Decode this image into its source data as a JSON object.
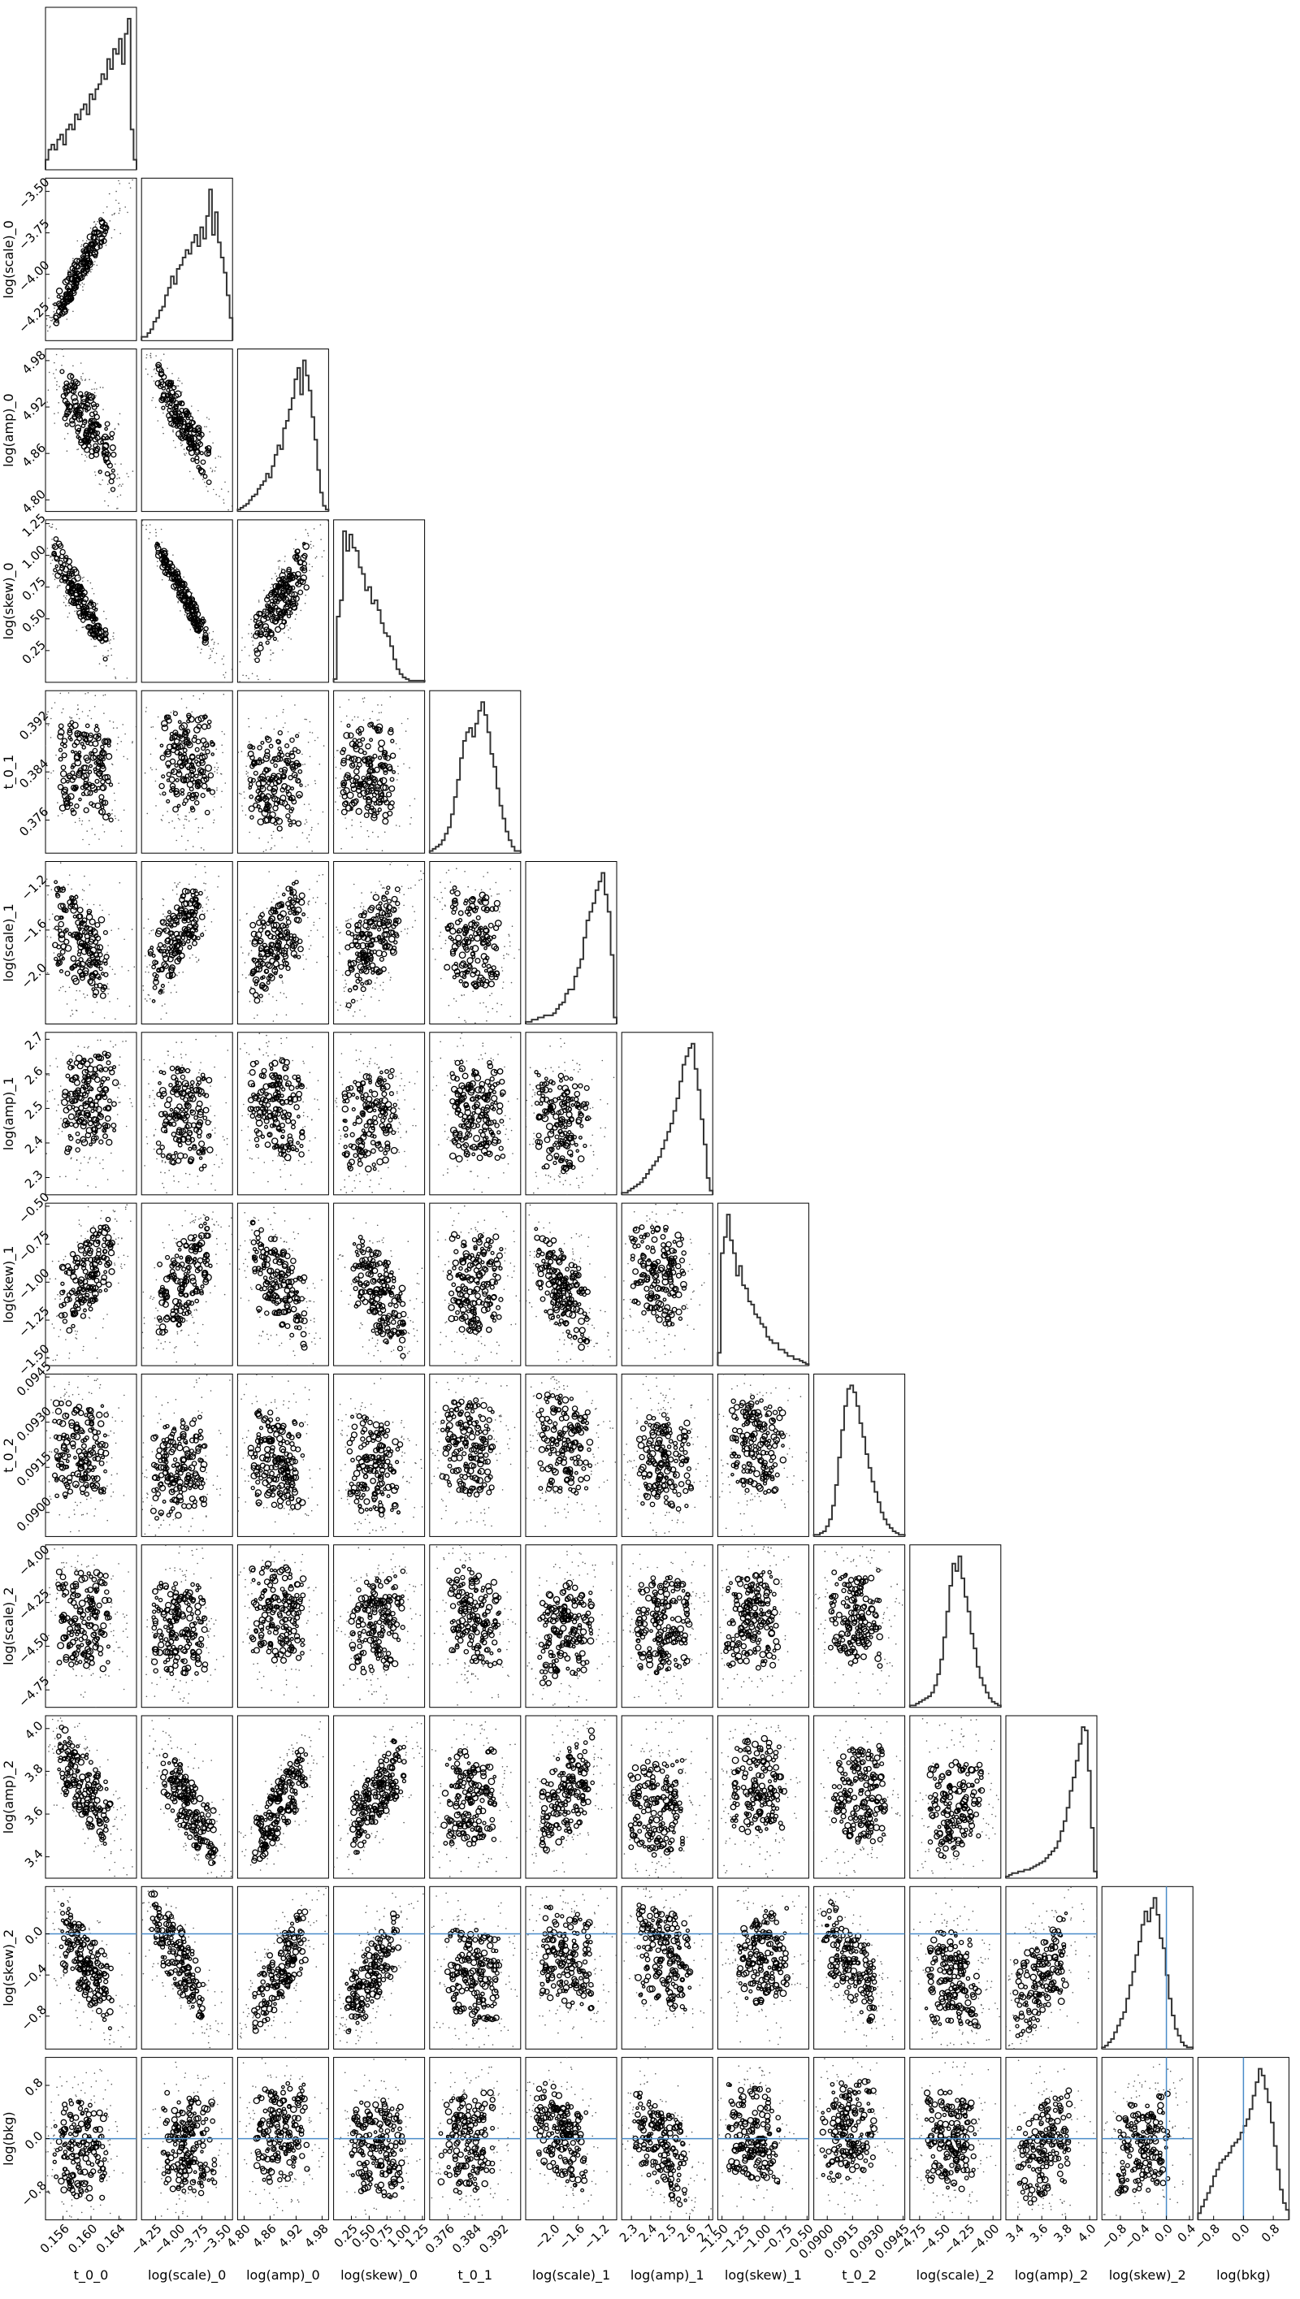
{
  "figure": {
    "type": "corner-plot"
  },
  "colors": {
    "frame": "#000000",
    "contour": "#000000",
    "points": "#555555",
    "truth": "#4a8cc9",
    "histogram": "#333333"
  },
  "chart_data": {
    "type": "corner",
    "parameters": [
      {
        "name": "t_0_0",
        "ylabel": "",
        "xticks": [
          "0.156",
          "0.160",
          "0.164"
        ],
        "yticks": [],
        "range": [
          0.1535,
          0.1665
        ]
      },
      {
        "name": "log(scale)_0",
        "ylabel": "log(scale)_0",
        "xticks": [
          "−4.25",
          "−4.00",
          "−3.75",
          "−3.50"
        ],
        "yticks": [
          "−3.50",
          "−3.75",
          "−4.00",
          "−4.25"
        ],
        "range": [
          -4.4,
          -3.42
        ]
      },
      {
        "name": "log(amp)_0",
        "ylabel": "log(amp)_0",
        "xticks": [
          "4.80",
          "4.86",
          "4.92",
          "4.98"
        ],
        "yticks": [
          "4.98",
          "4.92",
          "4.86",
          "4.80"
        ],
        "range": [
          4.785,
          4.995
        ]
      },
      {
        "name": "log(skew)_0",
        "ylabel": "log(skew)_0",
        "xticks": [
          "0.25",
          "0.50",
          "0.75",
          "1.00",
          "1.25"
        ],
        "yticks": [
          "1.25",
          "1.00",
          "0.75",
          "0.50",
          "0.25"
        ],
        "range": [
          0.0,
          1.28
        ]
      },
      {
        "name": "t_0_1",
        "ylabel": "t_0_1",
        "xticks": [
          "0.376",
          "0.384",
          "0.392"
        ],
        "yticks": [
          "0.392",
          "0.384",
          "0.376"
        ],
        "range": [
          0.3705,
          0.3975
        ]
      },
      {
        "name": "log(scale)_1",
        "ylabel": "log(scale)_1",
        "xticks": [
          "−2.0",
          "−1.6",
          "−1.2"
        ],
        "yticks": [
          "−1.2",
          "−1.6",
          "−2.0"
        ],
        "range": [
          -2.45,
          -0.98
        ]
      },
      {
        "name": "log(amp)_1",
        "ylabel": "log(amp)_1",
        "xticks": [
          "2.3",
          "2.4",
          "2.5",
          "2.6",
          "2.7"
        ],
        "yticks": [
          "2.7",
          "2.6",
          "2.5",
          "2.4",
          "2.3"
        ],
        "range": [
          2.25,
          2.72
        ]
      },
      {
        "name": "log(skew)_1",
        "ylabel": "log(skew)_1",
        "xticks": [
          "−1.50",
          "−1.25",
          "−1.00",
          "−0.75",
          "−0.50"
        ],
        "yticks": [
          "−0.50",
          "−0.75",
          "−1.00",
          "−1.25",
          "−1.50"
        ],
        "range": [
          -1.55,
          -0.48
        ]
      },
      {
        "name": "t_0_2",
        "ylabel": "t_0_2",
        "xticks": [
          "0.0900",
          "0.0915",
          "0.0930",
          "0.0945"
        ],
        "yticks": [
          "0.0945",
          "0.0930",
          "0.0915",
          "0.0900"
        ],
        "range": [
          0.0892,
          0.0946
        ]
      },
      {
        "name": "log(scale)_2",
        "ylabel": "log(scale)_2",
        "xticks": [
          "−4.75",
          "−4.50",
          "−4.25",
          "−4.00"
        ],
        "yticks": [
          "−4.00",
          "−4.25",
          "−4.50",
          "−4.75"
        ],
        "range": [
          -4.85,
          -3.92
        ]
      },
      {
        "name": "log(amp)_2",
        "ylabel": "log(amp)_2",
        "xticks": [
          "3.4",
          "3.6",
          "3.8",
          "4.0"
        ],
        "yticks": [
          "4.0",
          "3.8",
          "3.6",
          "3.4"
        ],
        "range": [
          3.3,
          4.06
        ]
      },
      {
        "name": "log(skew)_2",
        "ylabel": "log(skew)_2",
        "xticks": [
          "−0.8",
          "−0.4",
          "0.0",
          "0.4"
        ],
        "yticks": [
          "0.0",
          "−0.4",
          "−0.8"
        ],
        "range": [
          -1.12,
          0.46
        ]
      },
      {
        "name": "log(bkg)",
        "ylabel": "log(bkg)",
        "xticks": [
          "−0.8",
          "0.0",
          "0.8"
        ],
        "yticks": [
          "0.8",
          "0.0",
          "−0.8"
        ],
        "range": [
          -1.22,
          1.22
        ]
      }
    ],
    "truths": {
      "log(skew)_2": 0.0,
      "log(bkg)": 0.0
    },
    "histograms": [
      {
        "param": "t_0_0",
        "counts": [
          2,
          4,
          5,
          4,
          6,
          7,
          5,
          8,
          9,
          8,
          11,
          10,
          12,
          13,
          11,
          15,
          14,
          16,
          17,
          19,
          18,
          22,
          20,
          24,
          23,
          26,
          21,
          27,
          30,
          8,
          2
        ]
      },
      {
        "param": "log(scale)_0",
        "counts": [
          1,
          1,
          2,
          3,
          5,
          6,
          8,
          9,
          12,
          14,
          17,
          15,
          19,
          20,
          22,
          24,
          23,
          26,
          28,
          25,
          30,
          27,
          33,
          40,
          28,
          34,
          26,
          22,
          18,
          12,
          6
        ]
      },
      {
        "param": "log(amp)_0",
        "counts": [
          1,
          2,
          3,
          4,
          6,
          8,
          9,
          12,
          14,
          16,
          20,
          18,
          24,
          30,
          35,
          33,
          44,
          48,
          54,
          60,
          70,
          76,
          62,
          80,
          72,
          64,
          50,
          38,
          22,
          10,
          3,
          1
        ]
      },
      {
        "param": "log(skew)_0",
        "counts": [
          2,
          40,
          50,
          92,
          80,
          90,
          82,
          80,
          70,
          66,
          56,
          58,
          48,
          50,
          44,
          36,
          30,
          28,
          22,
          14,
          8,
          5,
          3,
          2,
          1,
          1,
          1,
          1,
          1
        ]
      },
      {
        "param": "t_0_1",
        "counts": [
          1,
          2,
          3,
          4,
          6,
          9,
          12,
          18,
          26,
          34,
          44,
          52,
          56,
          58,
          54,
          60,
          66,
          70,
          64,
          56,
          46,
          40,
          30,
          22,
          16,
          10,
          6,
          3,
          1,
          1
        ]
      },
      {
        "param": "log(scale)_1",
        "counts": [
          1,
          1,
          2,
          2,
          3,
          3,
          4,
          4,
          4,
          5,
          7,
          9,
          10,
          14,
          16,
          16,
          22,
          26,
          30,
          40,
          48,
          52,
          56,
          62,
          66,
          70,
          60,
          52,
          32,
          3
        ]
      },
      {
        "param": "log(amp)_1",
        "counts": [
          1,
          1,
          2,
          3,
          4,
          5,
          6,
          8,
          10,
          12,
          14,
          16,
          18,
          22,
          26,
          30,
          34,
          40,
          46,
          54,
          62,
          66,
          70,
          72,
          60,
          50,
          36,
          24,
          8,
          2
        ]
      },
      {
        "param": "log(skew)_1",
        "counts": [
          8,
          70,
          80,
          94,
          78,
          70,
          56,
          62,
          50,
          48,
          40,
          38,
          32,
          30,
          26,
          24,
          18,
          16,
          14,
          14,
          10,
          10,
          8,
          6,
          6,
          4,
          4,
          3,
          2,
          1
        ]
      },
      {
        "param": "t_0_2",
        "counts": [
          1,
          1,
          2,
          3,
          6,
          10,
          18,
          30,
          46,
          62,
          76,
          86,
          88,
          84,
          76,
          66,
          58,
          48,
          40,
          32,
          26,
          20,
          14,
          10,
          7,
          5,
          3,
          2,
          1,
          1
        ]
      },
      {
        "param": "log(scale)_2",
        "counts": [
          1,
          1,
          2,
          3,
          4,
          5,
          6,
          8,
          12,
          18,
          26,
          38,
          52,
          66,
          78,
          74,
          82,
          70,
          60,
          52,
          40,
          32,
          22,
          16,
          12,
          8,
          5,
          3,
          2,
          1
        ]
      },
      {
        "param": "log(amp)_2",
        "counts": [
          1,
          2,
          3,
          3,
          4,
          4,
          5,
          5,
          6,
          7,
          8,
          9,
          10,
          12,
          14,
          16,
          18,
          22,
          28,
          34,
          42,
          52,
          60,
          70,
          80,
          90,
          88,
          64,
          30,
          4
        ]
      },
      {
        "param": "log(skew)_2",
        "counts": [
          1,
          2,
          4,
          6,
          10,
          14,
          18,
          22,
          30,
          38,
          46,
          56,
          64,
          74,
          82,
          76,
          84,
          90,
          80,
          66,
          60,
          44,
          30,
          20,
          12,
          8,
          4,
          2,
          1,
          1
        ]
      },
      {
        "param": "log(bkg)",
        "counts": [
          4,
          8,
          12,
          16,
          20,
          26,
          30,
          34,
          36,
          38,
          40,
          44,
          46,
          48,
          52,
          56,
          60,
          66,
          74,
          82,
          90,
          86,
          78,
          70,
          58,
          44,
          30,
          18,
          10,
          6
        ]
      }
    ]
  }
}
